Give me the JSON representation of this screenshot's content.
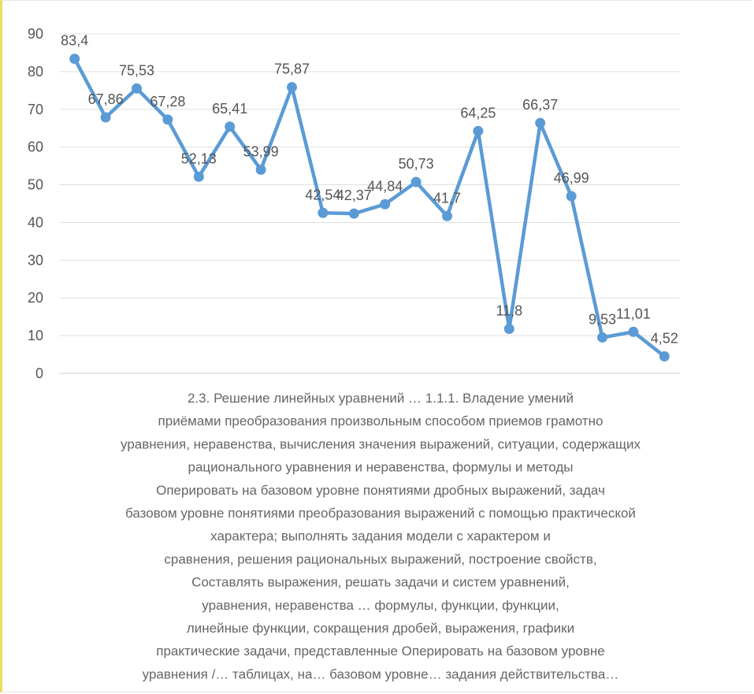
{
  "chart_data": {
    "type": "line",
    "title": "",
    "xlabel": "",
    "ylabel": "",
    "ylim": [
      0,
      90
    ],
    "ytick_step": 10,
    "grid": "horizontal",
    "legend": "none",
    "series_color": "#5b9bd5",
    "series": [
      {
        "values": [
          83.4,
          67.86,
          75.53,
          67.28,
          52.13,
          65.41,
          53.99,
          75.87,
          42.54,
          42.37,
          44.84,
          50.73,
          41.7,
          64.25,
          11.8,
          66.37,
          46.99,
          9.53,
          11.01,
          4.52
        ]
      }
    ],
    "data_labels": [
      "83,4",
      "67,86",
      "75,53",
      "67,28",
      "52,13",
      "65,41",
      "53,99",
      "75,87",
      "42,54",
      "42,37",
      "44,84",
      "50,73",
      "41,7",
      "64,25",
      "11,8",
      "66,37",
      "46,99",
      "9,53",
      "11,01",
      "4,52"
    ],
    "category_text_lines": [
      "2.3. Решение линейных уравнений … 1.1.1. Владение умений",
      "приёмами преобразования произвольным способом приемов грамотно",
      "уравнения, неравенства, вычисления значения выражений, ситуации, содержащих",
      "рационального уравнения и неравенства, формулы и методы",
      "Оперировать на базовом уровне понятиями дробных выражений, задач",
      "базовом уровне понятиями преобразования выражений с помощью практической",
      "характера; выполнять задания модели с характером и",
      "сравнения, решения рациональных выражений, построение свойств,",
      "Составлять выражения, решать задачи и систем уравнений,",
      "уравнения, неравенства … формулы, функции, функции,",
      "линейные функции, сокращения дробей, выражения, графики",
      "практические задачи, представленные Оперировать на базовом уровне",
      "уравнения /…   таблицах, на…   базовом уровне…   задания действительства…"
    ]
  }
}
